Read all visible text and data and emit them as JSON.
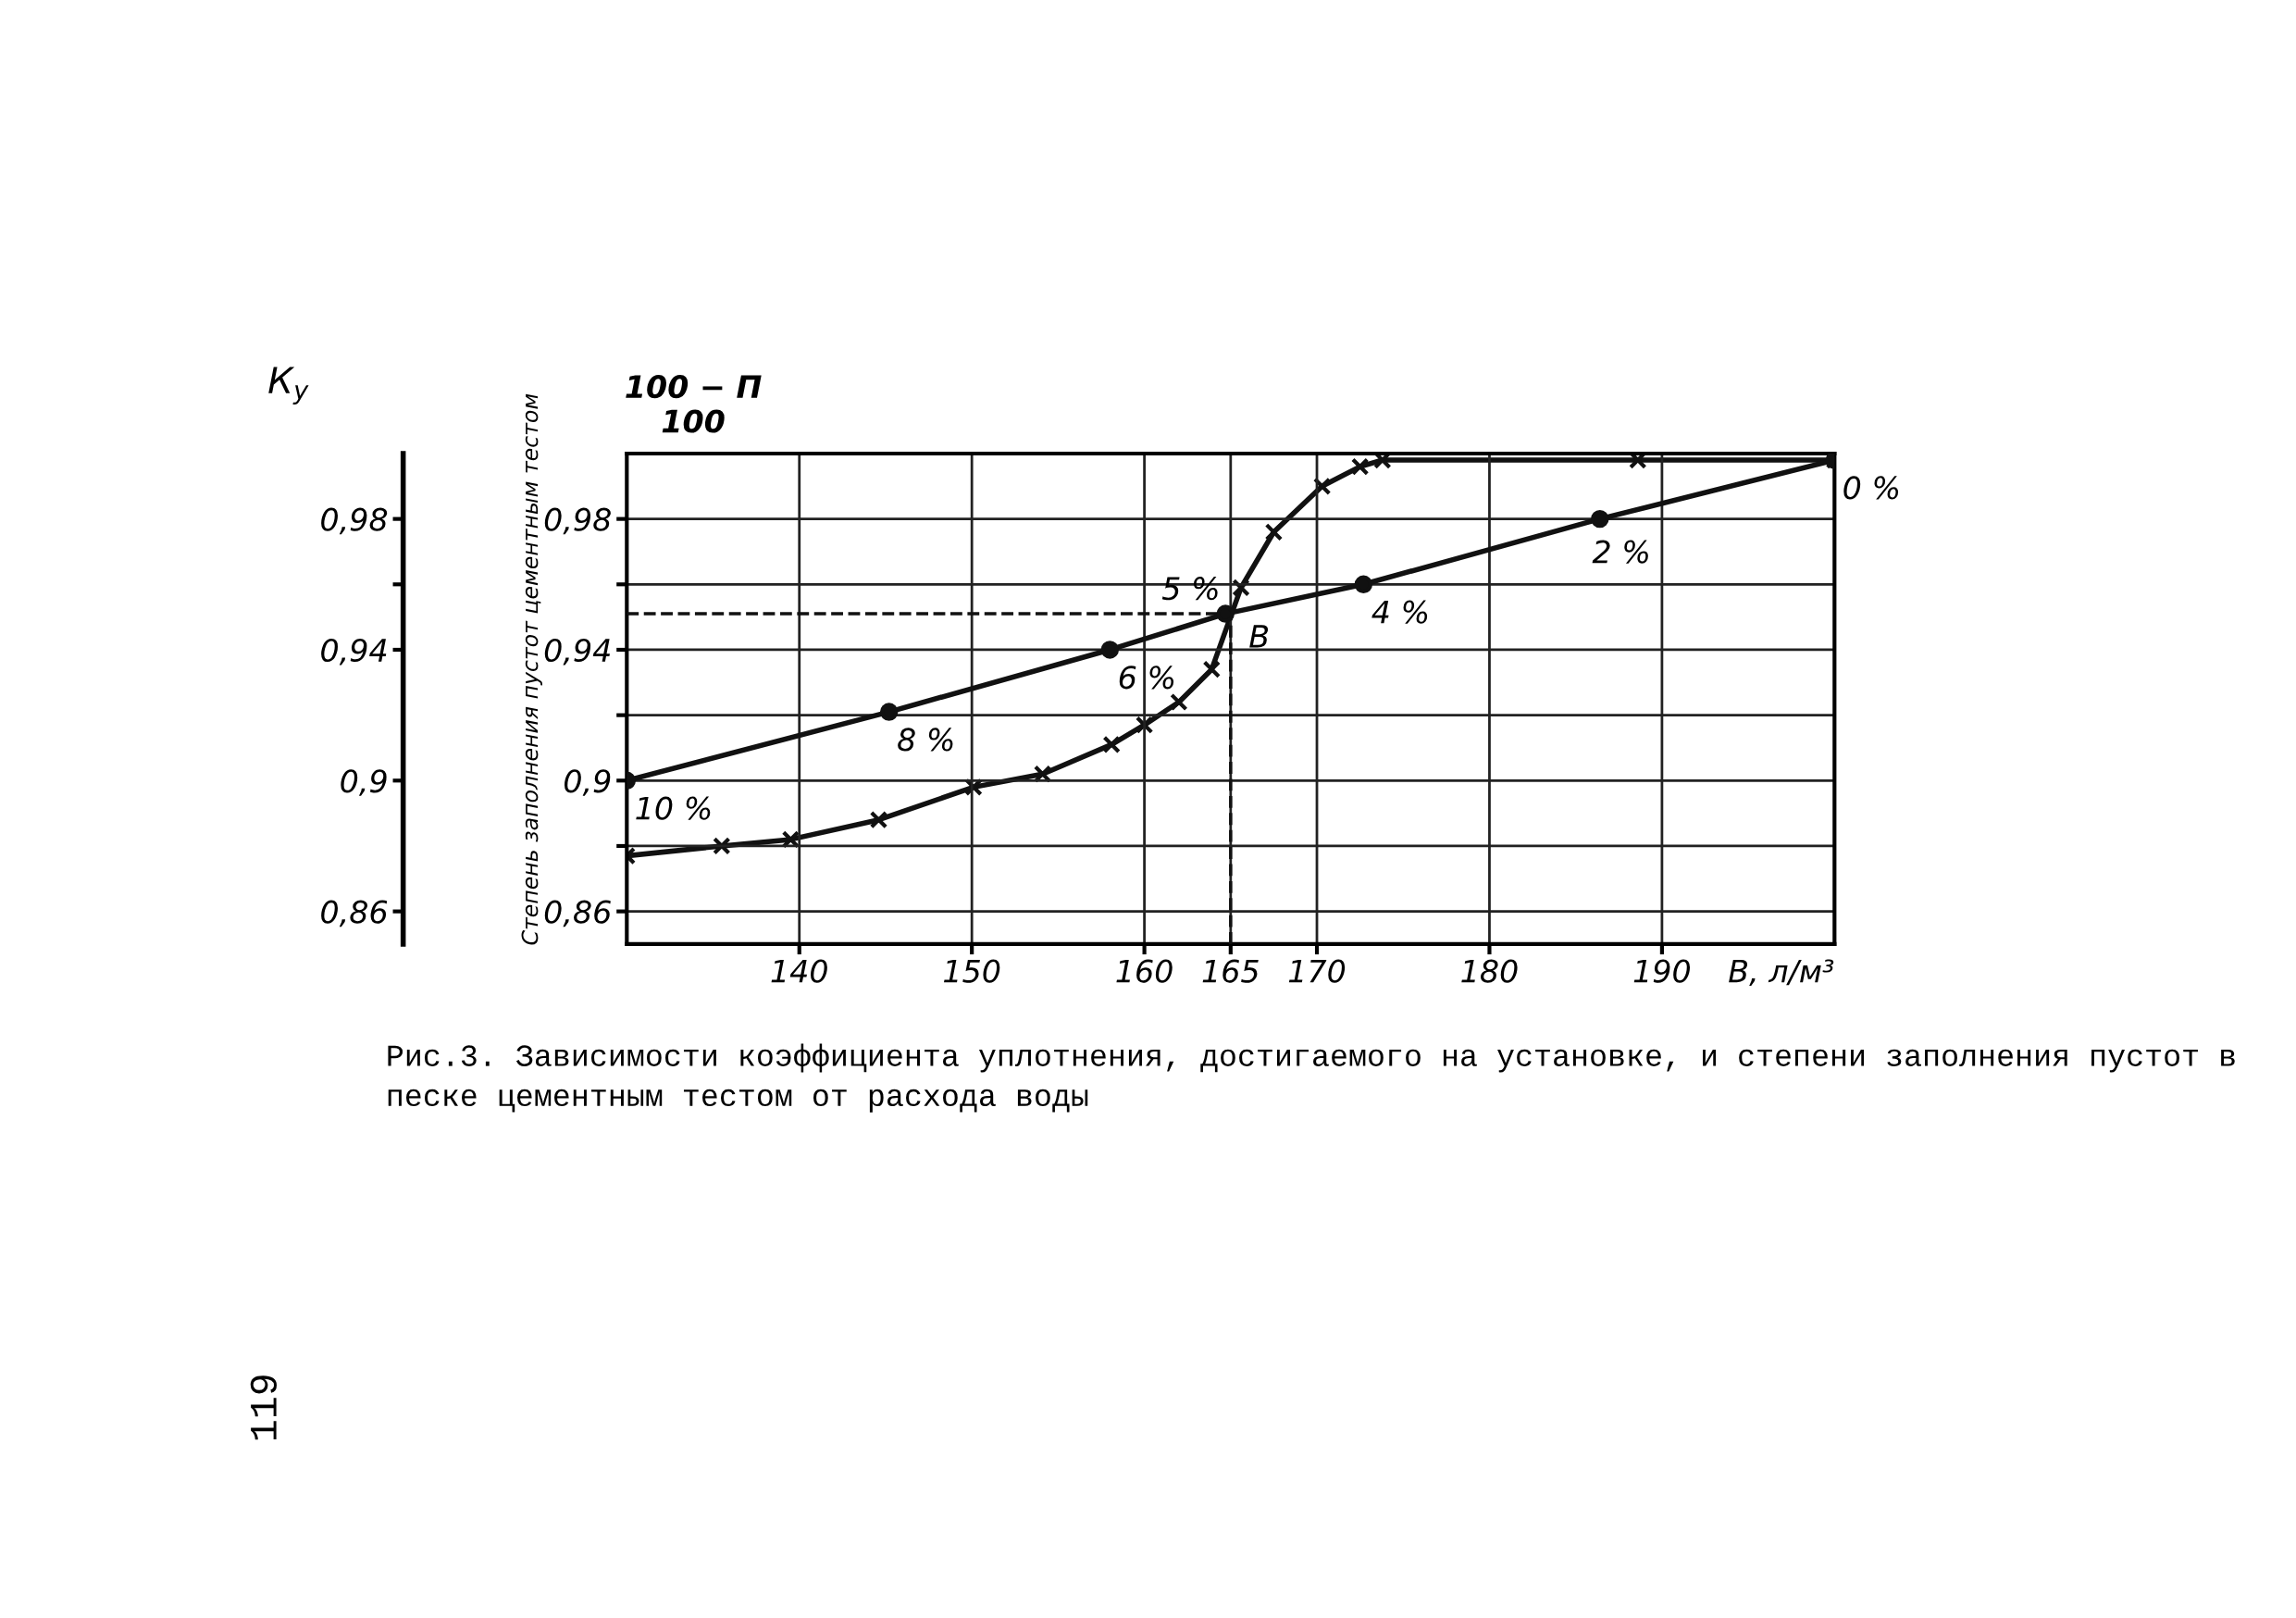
{
  "chart_data": {
    "type": "line",
    "title": "Рис.3. Зависимости коэффициента уплотнения, достигаемого на установке, и степени заполнения пустот в песке цементным тестом от расхода воды",
    "xlabel": "В, л/м³",
    "ylabel": "Степень заполнения пустот цементным тестом",
    "y2label": "К$_{у}$",
    "x": [
      130,
      145.2,
      158,
      164.7,
      172.7,
      186.4,
      200
    ],
    "series": [
      {
        "color": "#111111",
        "marker": "circle",
        "values": [
          0.9,
          0.921,
          0.94,
          0.951,
          0.96,
          0.98,
          0.998
        ]
      },
      {
        "color": "#111111",
        "marker": "cross",
        "axis": "y2",
        "x": [
          130,
          135.5,
          139.5,
          144.6,
          150.1,
          154.1,
          158.1,
          160,
          162,
          163.9,
          165.6,
          167.5,
          170.3,
          172.5,
          173.8,
          188.6,
          200
        ],
        "values": [
          0.877,
          0.88,
          0.882,
          0.888,
          0.898,
          0.902,
          0.911,
          0.917,
          0.924,
          0.934,
          0.959,
          0.976,
          0.99,
          0.996,
          0.998,
          0.998,
          0.998
        ]
      }
    ],
    "xlim": [
      130,
      200
    ],
    "xticks": [
      140,
      150,
      160,
      165,
      170,
      180,
      190
    ],
    "ylim": [
      0.85,
      1.0
    ],
    "yticks": [
      {
        "value": 0.86,
        "label": "0,86"
      },
      {
        "value": 0.88,
        "label": null
      },
      {
        "value": 0.9,
        "label": "0,9"
      },
      {
        "value": 0.92,
        "label": null
      },
      {
        "value": 0.94,
        "label": "0,94"
      },
      {
        "value": 0.96,
        "label": null
      },
      {
        "value": 0.98,
        "label": "0,98"
      }
    ],
    "y2lim": [
      0.85,
      1.0
    ],
    "y2ticks": [
      {
        "value": 0.86,
        "label": "0,86"
      },
      {
        "value": 0.9,
        "label": "0,9"
      },
      {
        "value": 0.94,
        "label": "0,94"
      },
      {
        "value": 0.96,
        "label": null
      },
      {
        "value": 0.98,
        "label": "0,98"
      }
    ],
    "ref_lines": [
      {
        "axis": "y",
        "value": 0.951,
        "line_style": "dashed",
        "color": "#111111"
      },
      {
        "axis": "x",
        "value": 165,
        "line_style": "dashed",
        "color": "#111111"
      }
    ],
    "grid": true,
    "line_style": "solid",
    "annotations": [
      {
        "text": "10 %",
        "x": 130,
        "y": 0.9
      },
      {
        "text": "8 %",
        "x": 145.2,
        "y": 0.921
      },
      {
        "text": "6 %",
        "x": 158,
        "y": 0.94
      },
      {
        "text": "5 %",
        "x": 164.7,
        "y": 0.951
      },
      {
        "text": "4 %",
        "x": 172.7,
        "y": 0.96
      },
      {
        "text": "2 %",
        "x": 186.4,
        "y": 0.98
      },
      {
        "text": "0 %",
        "x": 200,
        "y": 0.998
      },
      {
        "text": "В",
        "x": 165,
        "y": 0.951
      },
      "100 − П\n100",
      "119"
    ]
  }
}
